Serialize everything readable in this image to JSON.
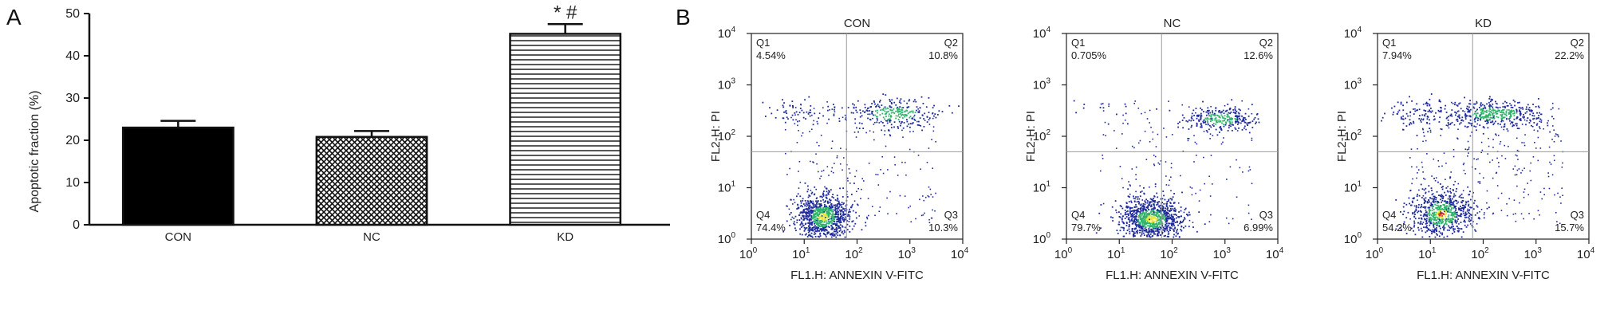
{
  "panels": {
    "a_label": "A",
    "b_label": "B"
  },
  "chart_data": [
    {
      "type": "bar",
      "ylabel": "Apoptotic fraction (%)",
      "xlabel": "",
      "ylim": [
        0,
        50
      ],
      "yticks": [
        "0",
        "10",
        "20",
        "30",
        "40",
        "50"
      ],
      "categories": [
        "CON",
        "NC",
        "KD"
      ],
      "values": [
        23,
        20.8,
        45.2
      ],
      "errors": [
        1.6,
        1.4,
        2.3
      ],
      "fills": [
        "solid-black",
        "crosshatch",
        "horizontal-lines"
      ],
      "significance": [
        "",
        "",
        "* #"
      ]
    },
    {
      "type": "scatter",
      "title": "CON",
      "xlabel": "FL1.H: ANNEXIN V-FITC",
      "ylabel": "FL2-H: PI",
      "scale": "log",
      "xlim": [
        1,
        10000
      ],
      "ylim": [
        1,
        10000
      ],
      "quadrants": [
        {
          "name": "Q1",
          "value": "4.54%"
        },
        {
          "name": "Q2",
          "value": "10.8%"
        },
        {
          "name": "Q3",
          "value": "10.3%"
        },
        {
          "name": "Q4",
          "value": "74.4%"
        }
      ]
    },
    {
      "type": "scatter",
      "title": "NC",
      "xlabel": "FL1.H: ANNEXIN V-FITC",
      "ylabel": "FL2-H: PI",
      "scale": "log",
      "xlim": [
        1,
        10000
      ],
      "ylim": [
        1,
        10000
      ],
      "quadrants": [
        {
          "name": "Q1",
          "value": "0.705%"
        },
        {
          "name": "Q2",
          "value": "12.6%"
        },
        {
          "name": "Q3",
          "value": "6.99%"
        },
        {
          "name": "Q4",
          "value": "79.7%"
        }
      ]
    },
    {
      "type": "scatter",
      "title": "KD",
      "xlabel": "FL1.H: ANNEXIN V-FITC",
      "ylabel": "FL2-H: PI",
      "scale": "log",
      "xlim": [
        1,
        10000
      ],
      "ylim": [
        1,
        10000
      ],
      "quadrants": [
        {
          "name": "Q1",
          "value": "7.94%"
        },
        {
          "name": "Q2",
          "value": "22.2%"
        },
        {
          "name": "Q3",
          "value": "15.7%"
        },
        {
          "name": "Q4",
          "value": "54.2%"
        }
      ]
    }
  ],
  "colors": {
    "axis": "#111111",
    "dots": "#1e2a9a",
    "dense": "#2fb46a",
    "core": "#e6e63a",
    "hot": "#d93a2a"
  }
}
